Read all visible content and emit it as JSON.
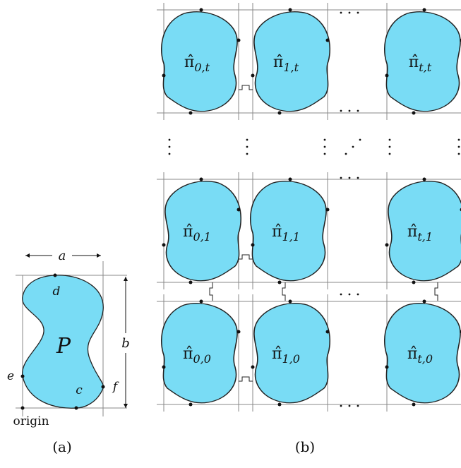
{
  "panel_a": {
    "width_label": "a",
    "height_label": "b",
    "shape_label": "P",
    "points": [
      "d",
      "e",
      "f",
      "c"
    ],
    "origin_label": "origin",
    "caption": "(a)"
  },
  "panel_b": {
    "caption": "(b)",
    "base": "π̂",
    "tiles": [
      {
        "sub": "0,t"
      },
      {
        "sub": "1,t"
      },
      {
        "sub": "t,t"
      },
      {
        "sub": "0,1"
      },
      {
        "sub": "1,1"
      },
      {
        "sub": "t,1"
      },
      {
        "sub": "0,0"
      },
      {
        "sub": "1,0"
      },
      {
        "sub": "t,0"
      }
    ]
  }
}
